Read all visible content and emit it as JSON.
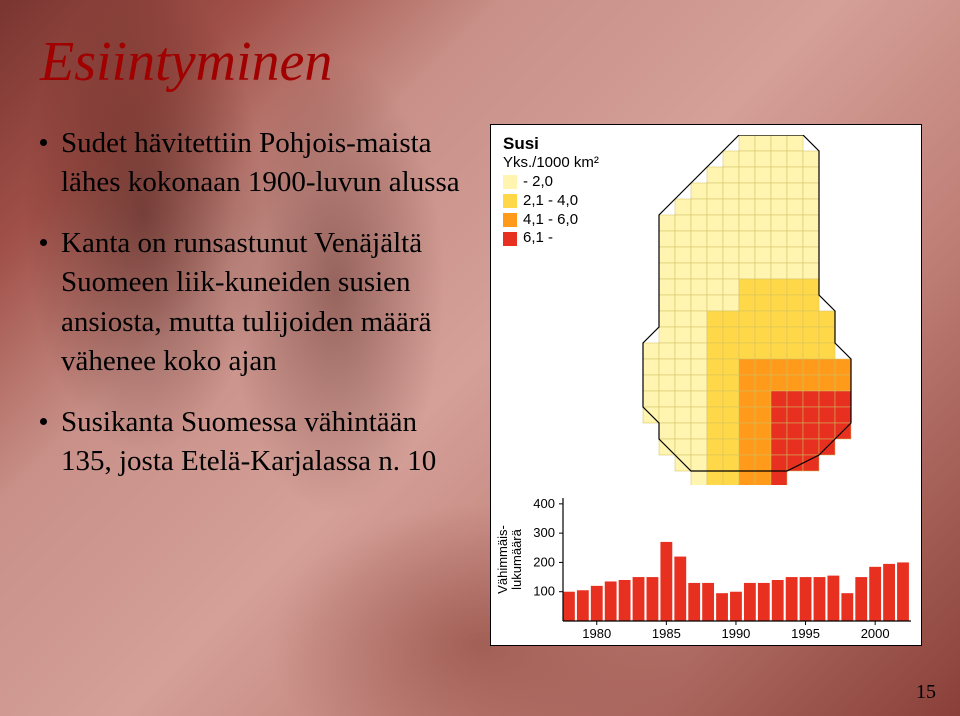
{
  "title": "Esiintyminen",
  "bullets": [
    "Sudet hävitettiin Pohjois-maista lähes kokonaan 1900-luvun alussa",
    "Kanta on runsastunut Venäjältä Suomeen liik-kuneiden susien ansiosta, mutta tulijoiden määrä vähenee koko ajan",
    "Susikanta Suomessa vähintään 135, josta Etelä-Karjalassa n. 10"
  ],
  "page_number": "15",
  "map": {
    "title": "Susi",
    "unit_label": "Yks./1000 km²",
    "legend": [
      {
        "color": "#fff4b0",
        "label": "- 2,0"
      },
      {
        "color": "#ffd84a",
        "label": "2,1 - 4,0"
      },
      {
        "color": "#ff9a1a",
        "label": "4,1 - 6,0"
      },
      {
        "color": "#e83020",
        "label": "6,1 -"
      }
    ],
    "outline_color": "#000000",
    "background": "#ffffff"
  },
  "barchart": {
    "type": "bar",
    "ylabel": "Vähimmäis-\nlukumäärä",
    "ytick_values": [
      100,
      200,
      300,
      400
    ],
    "ylim": [
      0,
      420
    ],
    "x_year_start": 1978,
    "x_year_end": 2002,
    "x_tick_labels": [
      "1980",
      "1985",
      "1990",
      "1995",
      "2000"
    ],
    "x_tick_years": [
      1980,
      1985,
      1990,
      1995,
      2000
    ],
    "values": [
      100,
      105,
      120,
      135,
      140,
      150,
      150,
      270,
      220,
      130,
      130,
      95,
      100,
      130,
      130,
      140,
      150,
      150,
      150,
      155,
      95,
      150,
      185,
      195,
      200
    ],
    "bar_color": "#e83020",
    "axis_color": "#000000",
    "label_fontsize": 13,
    "tick_fontsize": 13,
    "background": "#ffffff"
  }
}
